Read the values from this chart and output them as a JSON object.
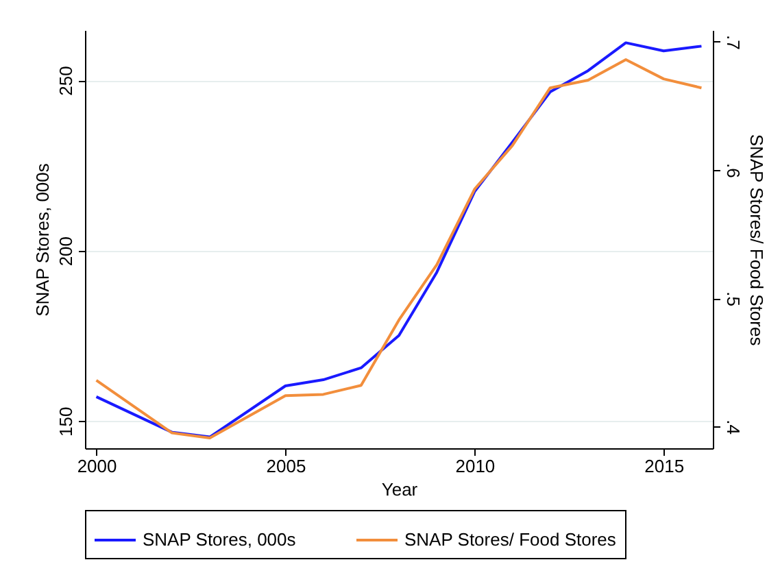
{
  "chart_data": {
    "type": "line",
    "xlabel": "Year",
    "ylabel": "SNAP Stores, 000s",
    "y2label": "SNAP Stores/ Food Stores",
    "x": [
      2000,
      2002,
      2003,
      2005,
      2006,
      2007,
      2008,
      2009,
      2010,
      2011,
      2012,
      2013,
      2014,
      2015,
      2016
    ],
    "series": [
      {
        "name": "SNAP Stores, 000s",
        "color": "#1a1aff",
        "values": [
          157.1,
          146.7,
          145.3,
          160.3,
          162.1,
          165.6,
          175.1,
          193.6,
          217.3,
          231.8,
          246.6,
          252.8,
          261.0,
          258.6,
          260.0
        ]
      },
      {
        "name": "SNAP Stores/ Food Stores",
        "color": "#f28e3c",
        "axis": "y2",
        "values": [
          0.436,
          0.395,
          0.391,
          0.424,
          0.425,
          0.432,
          0.483,
          0.526,
          0.585,
          0.619,
          0.664,
          0.67,
          0.686,
          0.671,
          0.664
        ]
      }
    ],
    "xlim": [
      1999.7,
      2016.3
    ],
    "xticks": [
      2000,
      2005,
      2010,
      2015
    ],
    "ylim": [
      142,
      264.7
    ],
    "yticks": [
      150,
      200,
      250
    ],
    "y2lim": [
      0.383,
      0.709
    ],
    "y2ticks": [
      {
        "value": 0.4,
        "label": ".4"
      },
      {
        "value": 0.5,
        "label": ".5"
      },
      {
        "value": 0.6,
        "label": ".6"
      },
      {
        "value": 0.7,
        "label": ".7"
      }
    ],
    "grid": "y",
    "legend": "bottom",
    "marker": "none",
    "line_style": "solid"
  }
}
